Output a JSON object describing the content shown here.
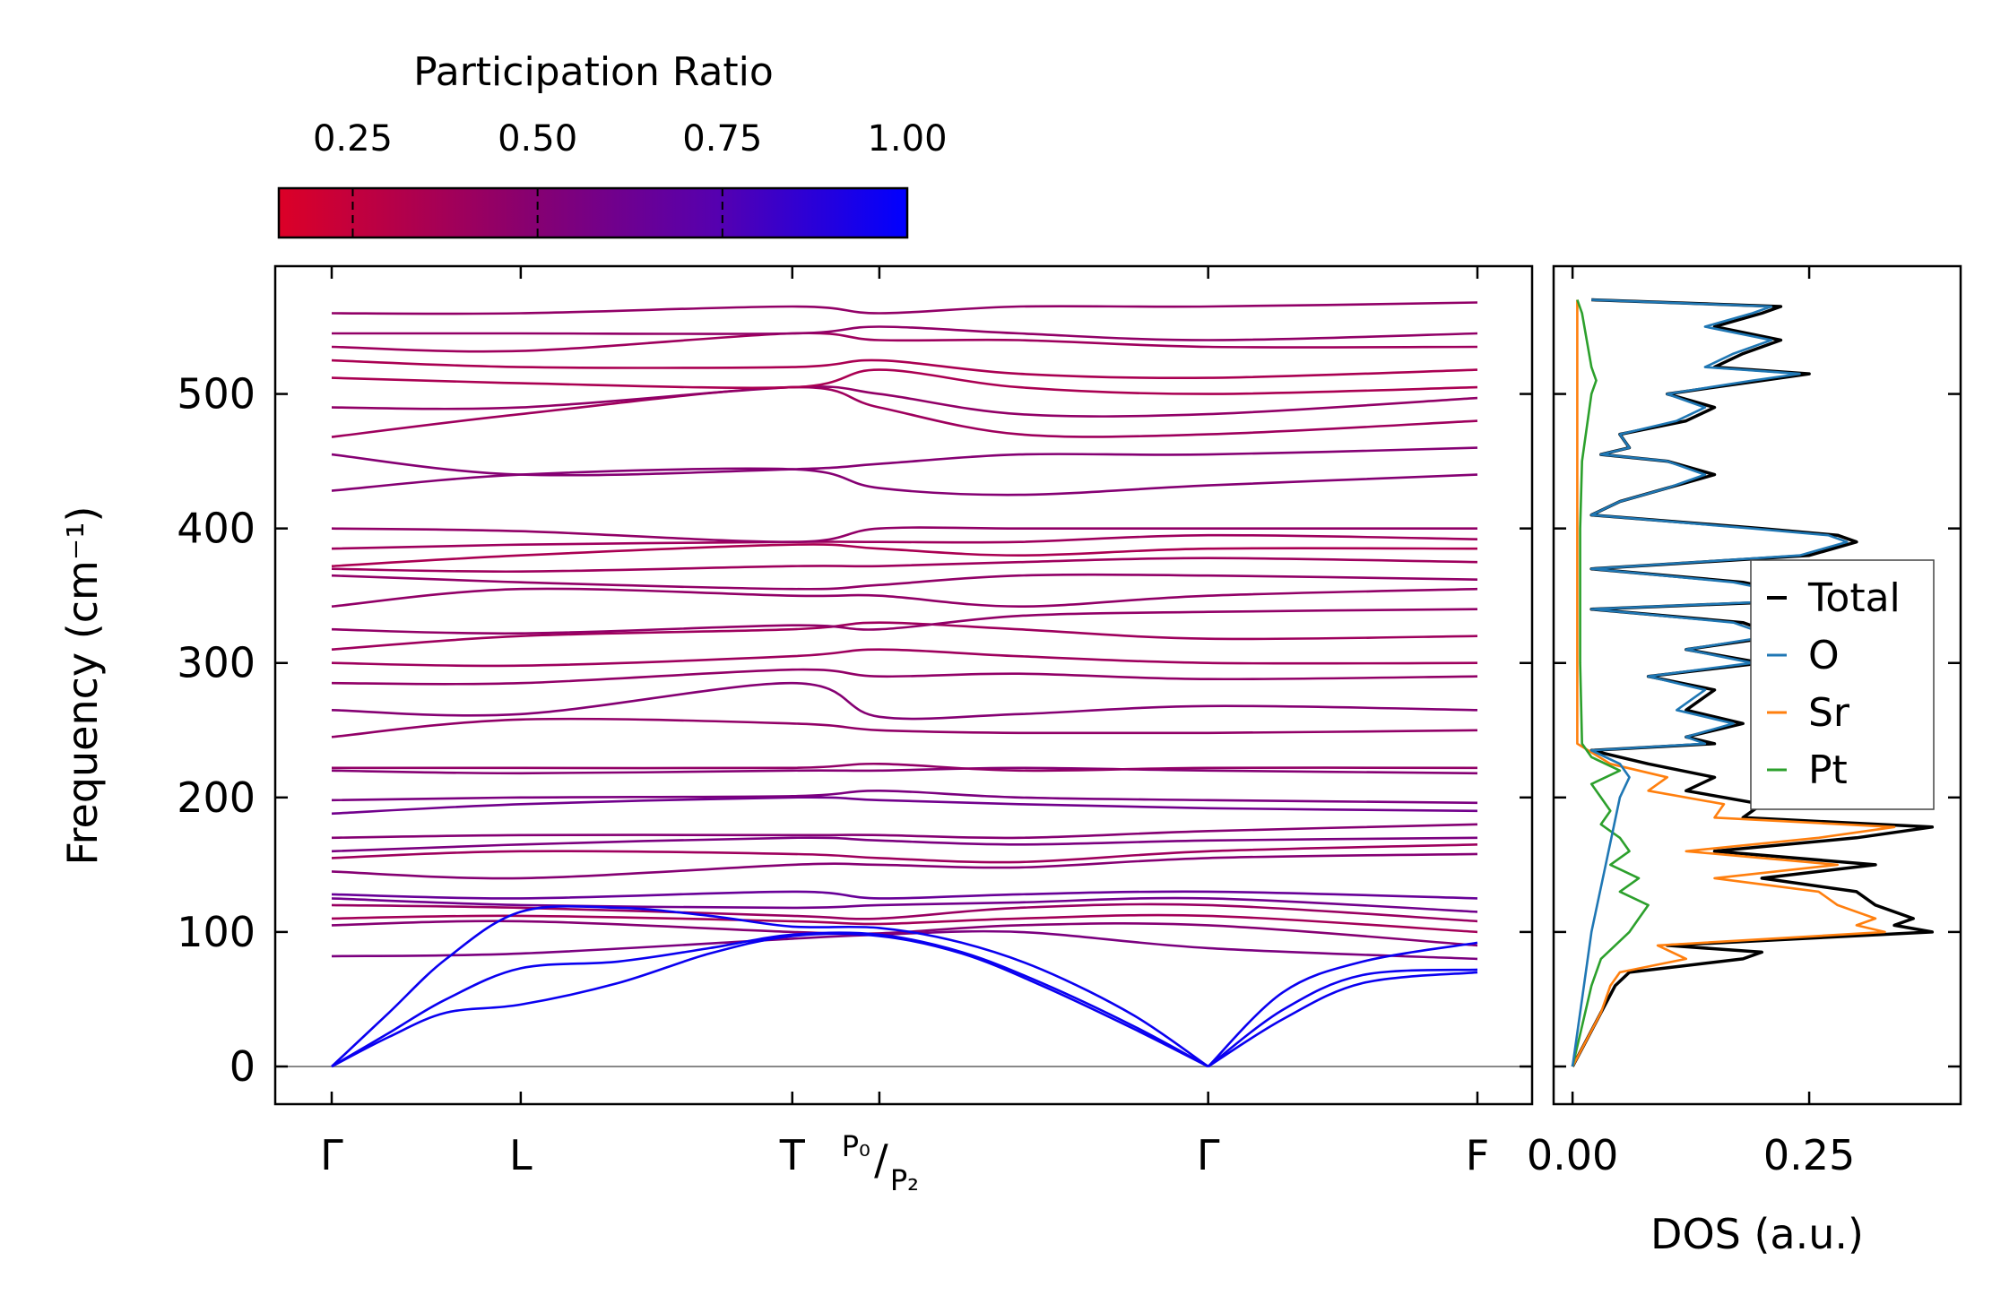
{
  "chart_data": {
    "type": "line",
    "colorbar": {
      "title": "Participation Ratio",
      "ticks": [
        "0.25",
        "0.50",
        "0.75",
        "1.00"
      ],
      "range": [
        0.15,
        1.0
      ],
      "colors": [
        "#dc0027",
        "#870070",
        "#5500b0",
        "#0000ff"
      ]
    },
    "band_panel": {
      "ylabel": "Frequency (cm⁻¹)",
      "ylim": [
        -28,
        595
      ],
      "yticks": [
        0,
        100,
        200,
        300,
        400,
        500
      ],
      "ytick_labels": [
        "0",
        "100",
        "200",
        "300",
        "400",
        "500"
      ],
      "x_range": [
        0,
        1.0
      ],
      "kpoints": [
        {
          "label": "Γ",
          "x": 0.0
        },
        {
          "label": "L",
          "x": 0.165
        },
        {
          "label": "T",
          "x": 0.402
        },
        {
          "label": "P₀/P₂",
          "x": 0.478
        },
        {
          "label": "Γ",
          "x": 0.765
        },
        {
          "label": "F",
          "x": 1.0
        }
      ],
      "acoustic_bands": [
        {
          "x": [
            0,
            0.05,
            0.1,
            0.165,
            0.25,
            0.33,
            0.402,
            0.478,
            0.55,
            0.62,
            0.7,
            0.765
          ],
          "y": [
            0,
            40,
            80,
            115,
            118,
            112,
            104,
            103,
            92,
            72,
            38,
            0
          ]
        },
        {
          "x": [
            0,
            0.05,
            0.1,
            0.165,
            0.25,
            0.33,
            0.402,
            0.478,
            0.55,
            0.62,
            0.7,
            0.765
          ],
          "y": [
            0,
            25,
            50,
            73,
            78,
            88,
            98,
            98,
            85,
            62,
            30,
            0
          ]
        },
        {
          "x": [
            0,
            0.05,
            0.1,
            0.165,
            0.25,
            0.33,
            0.402,
            0.478,
            0.55,
            0.62,
            0.7,
            0.765
          ],
          "y": [
            0,
            22,
            40,
            46,
            62,
            84,
            97,
            97,
            84,
            60,
            28,
            0
          ]
        },
        {
          "x": [
            0.765,
            0.83,
            0.9,
            1.0
          ],
          "y": [
            0,
            35,
            62,
            70
          ]
        },
        {
          "x": [
            0.765,
            0.83,
            0.9,
            1.0
          ],
          "y": [
            0,
            42,
            68,
            72
          ]
        },
        {
          "x": [
            0.765,
            0.83,
            0.9,
            1.0
          ],
          "y": [
            0,
            55,
            78,
            92
          ]
        }
      ],
      "optical_bands": [
        {
          "y": [
            82,
            84,
            95,
            98,
            100,
            88,
            80
          ],
          "pr": 0.55
        },
        {
          "y": [
            105,
            108,
            100,
            99,
            105,
            105,
            90
          ],
          "pr": 0.5
        },
        {
          "y": [
            110,
            112,
            108,
            106,
            110,
            112,
            100
          ],
          "pr": 0.38
        },
        {
          "y": [
            120,
            118,
            112,
            110,
            118,
            120,
            108
          ],
          "pr": 0.42
        },
        {
          "y": [
            125,
            120,
            118,
            120,
            122,
            125,
            115
          ],
          "pr": 0.6
        },
        {
          "y": [
            128,
            125,
            130,
            125,
            128,
            130,
            125
          ],
          "pr": 0.65
        },
        {
          "y": [
            145,
            140,
            150,
            150,
            148,
            155,
            158
          ],
          "pr": 0.5
        },
        {
          "y": [
            155,
            160,
            158,
            155,
            152,
            160,
            165
          ],
          "pr": 0.4
        },
        {
          "y": [
            160,
            165,
            170,
            168,
            165,
            168,
            170
          ],
          "pr": 0.55
        },
        {
          "y": [
            170,
            172,
            172,
            172,
            170,
            175,
            180
          ],
          "pr": 0.5
        },
        {
          "y": [
            188,
            195,
            200,
            198,
            195,
            192,
            190
          ],
          "pr": 0.6
        },
        {
          "y": [
            198,
            200,
            201,
            205,
            200,
            198,
            196
          ],
          "pr": 0.55
        },
        {
          "y": [
            220,
            218,
            220,
            220,
            222,
            220,
            218
          ],
          "pr": 0.5
        },
        {
          "y": [
            222,
            222,
            222,
            225,
            220,
            222,
            222
          ],
          "pr": 0.45
        },
        {
          "y": [
            245,
            258,
            255,
            250,
            248,
            248,
            250
          ],
          "pr": 0.45
        },
        {
          "y": [
            265,
            262,
            285,
            260,
            262,
            268,
            265
          ],
          "pr": 0.5
        },
        {
          "y": [
            285,
            285,
            295,
            290,
            292,
            288,
            290
          ],
          "pr": 0.45
        },
        {
          "y": [
            300,
            298,
            305,
            310,
            305,
            300,
            300
          ],
          "pr": 0.4
        },
        {
          "y": [
            310,
            320,
            325,
            330,
            325,
            318,
            320
          ],
          "pr": 0.4
        },
        {
          "y": [
            325,
            322,
            328,
            325,
            335,
            338,
            340
          ],
          "pr": 0.45
        },
        {
          "y": [
            342,
            355,
            350,
            350,
            342,
            350,
            355
          ],
          "pr": 0.45
        },
        {
          "y": [
            365,
            360,
            355,
            358,
            365,
            365,
            362
          ],
          "pr": 0.45
        },
        {
          "y": [
            370,
            368,
            372,
            372,
            375,
            378,
            375
          ],
          "pr": 0.4
        },
        {
          "y": [
            372,
            380,
            388,
            385,
            380,
            385,
            385
          ],
          "pr": 0.35
        },
        {
          "y": [
            385,
            388,
            390,
            390,
            390,
            395,
            392
          ],
          "pr": 0.4
        },
        {
          "y": [
            400,
            398,
            390,
            400,
            400,
            400,
            400
          ],
          "pr": 0.45
        },
        {
          "y": [
            428,
            440,
            444,
            430,
            425,
            432,
            440
          ],
          "pr": 0.5
        },
        {
          "y": [
            455,
            440,
            444,
            448,
            455,
            455,
            460
          ],
          "pr": 0.5
        },
        {
          "y": [
            468,
            485,
            505,
            490,
            470,
            470,
            480
          ],
          "pr": 0.4
        },
        {
          "y": [
            490,
            490,
            505,
            500,
            485,
            485,
            497
          ],
          "pr": 0.45
        },
        {
          "y": [
            512,
            508,
            505,
            518,
            505,
            500,
            505
          ],
          "pr": 0.35
        },
        {
          "y": [
            525,
            520,
            520,
            525,
            515,
            512,
            518
          ],
          "pr": 0.35
        },
        {
          "y": [
            535,
            532,
            545,
            540,
            540,
            535,
            535
          ],
          "pr": 0.4
        },
        {
          "y": [
            545,
            545,
            545,
            550,
            545,
            540,
            545
          ],
          "pr": 0.45
        },
        {
          "y": [
            560,
            560,
            565,
            560,
            565,
            565,
            568
          ],
          "pr": 0.45
        }
      ],
      "band_x": [
        0,
        0.165,
        0.402,
        0.478,
        0.6,
        0.765,
        1.0
      ]
    },
    "dos_panel": {
      "xlabel": "DOS (a.u.)",
      "xlim": [
        -0.02,
        0.41
      ],
      "xticks": [
        0.0,
        0.25
      ],
      "xtick_labels": [
        "0.00",
        "0.25"
      ],
      "ylim": [
        -28,
        595
      ],
      "legend": {
        "entries": [
          "Total",
          "O",
          "Sr",
          "Pt"
        ],
        "position": "center-right"
      },
      "series": [
        {
          "name": "Total",
          "color": "#000000",
          "freq": [
            0,
            20,
            40,
            60,
            70,
            80,
            85,
            90,
            100,
            105,
            110,
            120,
            130,
            140,
            150,
            160,
            170,
            178,
            185,
            195,
            205,
            215,
            225,
            235,
            240,
            245,
            255,
            265,
            280,
            290,
            300,
            310,
            320,
            330,
            340,
            345,
            350,
            360,
            370,
            380,
            390,
            395,
            400,
            410,
            420,
            430,
            440,
            450,
            455,
            460,
            470,
            480,
            490,
            500,
            510,
            515,
            520,
            530,
            540,
            550,
            560,
            565,
            570
          ],
          "value": [
            0,
            0.015,
            0.03,
            0.045,
            0.06,
            0.18,
            0.2,
            0.1,
            0.38,
            0.34,
            0.36,
            0.32,
            0.3,
            0.2,
            0.32,
            0.15,
            0.3,
            0.38,
            0.18,
            0.2,
            0.12,
            0.15,
            0.08,
            0.02,
            0.15,
            0.12,
            0.18,
            0.12,
            0.15,
            0.08,
            0.2,
            0.12,
            0.22,
            0.18,
            0.02,
            0.2,
            0.25,
            0.18,
            0.02,
            0.25,
            0.3,
            0.28,
            0.2,
            0.02,
            0.05,
            0.1,
            0.15,
            0.1,
            0.03,
            0.06,
            0.05,
            0.12,
            0.15,
            0.1,
            0.2,
            0.25,
            0.15,
            0.18,
            0.22,
            0.15,
            0.2,
            0.22,
            0.02
          ]
        },
        {
          "name": "O",
          "color": "#1f77b4",
          "freq": [
            0,
            50,
            100,
            150,
            200,
            215,
            225,
            235,
            240,
            245,
            255,
            265,
            280,
            290,
            300,
            310,
            320,
            330,
            340,
            345,
            350,
            360,
            370,
            380,
            390,
            395,
            400,
            410,
            420,
            430,
            440,
            450,
            455,
            460,
            470,
            480,
            490,
            500,
            510,
            515,
            520,
            530,
            540,
            550,
            560,
            565,
            570
          ],
          "value": [
            0,
            0.01,
            0.02,
            0.035,
            0.05,
            0.06,
            0.05,
            0.02,
            0.14,
            0.12,
            0.17,
            0.11,
            0.14,
            0.08,
            0.19,
            0.12,
            0.21,
            0.17,
            0.02,
            0.19,
            0.24,
            0.17,
            0.02,
            0.24,
            0.29,
            0.27,
            0.19,
            0.02,
            0.05,
            0.1,
            0.14,
            0.1,
            0.03,
            0.06,
            0.05,
            0.11,
            0.14,
            0.1,
            0.19,
            0.24,
            0.14,
            0.17,
            0.21,
            0.14,
            0.19,
            0.21,
            0.02
          ]
        },
        {
          "name": "Sr",
          "color": "#ff7f0e",
          "freq": [
            0,
            20,
            40,
            60,
            70,
            80,
            90,
            100,
            105,
            110,
            120,
            130,
            140,
            150,
            160,
            170,
            178,
            185,
            195,
            205,
            215,
            225,
            240,
            300,
            400,
            500,
            570
          ],
          "value": [
            0,
            0.015,
            0.03,
            0.04,
            0.05,
            0.12,
            0.09,
            0.33,
            0.3,
            0.32,
            0.28,
            0.26,
            0.15,
            0.28,
            0.12,
            0.26,
            0.34,
            0.15,
            0.16,
            0.08,
            0.1,
            0.04,
            0.005,
            0.005,
            0.005,
            0.005,
            0.005
          ]
        },
        {
          "name": "Pt",
          "color": "#2ca02c",
          "freq": [
            0,
            30,
            60,
            80,
            100,
            110,
            120,
            130,
            140,
            150,
            160,
            170,
            180,
            190,
            200,
            210,
            220,
            230,
            240,
            300,
            400,
            450,
            500,
            510,
            520,
            560,
            570
          ],
          "value": [
            0,
            0.01,
            0.02,
            0.03,
            0.06,
            0.07,
            0.08,
            0.05,
            0.07,
            0.04,
            0.06,
            0.05,
            0.03,
            0.04,
            0.03,
            0.02,
            0.05,
            0.02,
            0.01,
            0.008,
            0.008,
            0.01,
            0.02,
            0.025,
            0.02,
            0.01,
            0.005
          ]
        }
      ]
    }
  }
}
